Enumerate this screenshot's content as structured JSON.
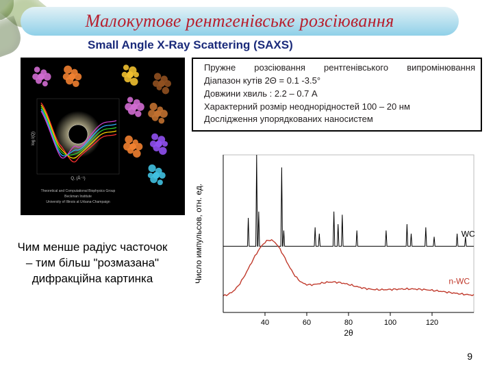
{
  "page_number": "9",
  "title": {
    "text": "Малокутове рентгенівське розсіювання",
    "text_color": "#b71f2e",
    "banner_gradient_top": "#e2f1f6",
    "banner_gradient_bottom": "#8fd0e8",
    "font_size_pt": 20
  },
  "subtitle": {
    "text": "Small Angle X-Ray Scattering (SAXS)",
    "text_color": "#1a2a7a",
    "font_size_pt": 13
  },
  "info_box": {
    "border_color": "#000000",
    "text_color": "#242021",
    "font_size_pt": 10,
    "bullet_glyph": "",
    "items": [
      "Пружне розсіювання рентгенівського випромінювання",
      "Діапазон кутів 2Θ = 0.1 -3.5°",
      "Довжини хвиль : 2.2 – 0.7 А",
      "Характерний розмір неоднорідностей 100 – 20 нм",
      "Дослідження упорядкованих наносистем"
    ]
  },
  "caption": {
    "text": "Чим менше радіус часточок – тим більш \"розмазана\" дифракційна картинка",
    "text_color": "#242021",
    "font_size_pt": 13
  },
  "decor": {
    "leaf_colors": [
      "#668844",
      "#7fa050",
      "#55703a"
    ]
  },
  "saxs_illustration": {
    "background": "#000000",
    "eclipse_center": [
      84,
      112
    ],
    "eclipse_radius": 14,
    "halo_color": "#d8cfa6",
    "curve_colors": [
      "#ff3030",
      "#ffd400",
      "#30d030",
      "#30b0ff",
      "#d040d0"
    ],
    "axis_label_x": "Q, (Å⁻¹)",
    "axis_label_y": "log I(Q)",
    "credit_lines": [
      "Theoretical and Computational Biophysics Group",
      "Beckman Institute",
      "University of Illinois at Urbana-Champaign"
    ],
    "protein_colors": [
      "#d06bd0",
      "#f08030",
      "#f0c030",
      "#905020",
      "#c07030",
      "#9050f0",
      "#40c0e0"
    ]
  },
  "xrd_chart": {
    "type": "line",
    "background_color": "#ffffff",
    "axis_color": "#000000",
    "grid_color": "#bcbcbc",
    "label_fontsize": 12,
    "tick_fontsize": 11,
    "xlabel": "2θ",
    "ylabel": "Число импульсов, отн. ед.",
    "xlim": [
      20,
      140
    ],
    "xtick_step": 20,
    "xticks": [
      40,
      60,
      80,
      100,
      120
    ],
    "ylim": [
      0,
      1.0
    ],
    "series": [
      {
        "name": "WC",
        "label": "WC",
        "color": "#000000",
        "line_width": 1,
        "baseline": 0.42,
        "peaks": [
          {
            "x": 32,
            "h": 0.18
          },
          {
            "x": 36,
            "h": 0.58
          },
          {
            "x": 37,
            "h": 0.22
          },
          {
            "x": 48,
            "h": 0.5
          },
          {
            "x": 49,
            "h": 0.1
          },
          {
            "x": 64,
            "h": 0.12
          },
          {
            "x": 66,
            "h": 0.08
          },
          {
            "x": 73,
            "h": 0.22
          },
          {
            "x": 75,
            "h": 0.14
          },
          {
            "x": 77,
            "h": 0.2
          },
          {
            "x": 84,
            "h": 0.1
          },
          {
            "x": 98,
            "h": 0.1
          },
          {
            "x": 108,
            "h": 0.14
          },
          {
            "x": 110,
            "h": 0.08
          },
          {
            "x": 117,
            "h": 0.12
          },
          {
            "x": 121,
            "h": 0.06
          },
          {
            "x": 132,
            "h": 0.08
          },
          {
            "x": 136,
            "h": 0.06
          }
        ]
      },
      {
        "name": "n-WC",
        "label": "n-WC",
        "color": "#c0392b",
        "line_width": 1.4,
        "baseline": 0.1,
        "broad_peaks": [
          {
            "x": 36,
            "h": 0.2,
            "w": 6
          },
          {
            "x": 43,
            "h": 0.14,
            "w": 5
          },
          {
            "x": 48,
            "h": 0.16,
            "w": 6
          },
          {
            "x": 65,
            "h": 0.04,
            "w": 10
          },
          {
            "x": 75,
            "h": 0.06,
            "w": 10
          },
          {
            "x": 100,
            "h": 0.03,
            "w": 14
          },
          {
            "x": 118,
            "h": 0.03,
            "w": 14
          }
        ]
      }
    ]
  }
}
